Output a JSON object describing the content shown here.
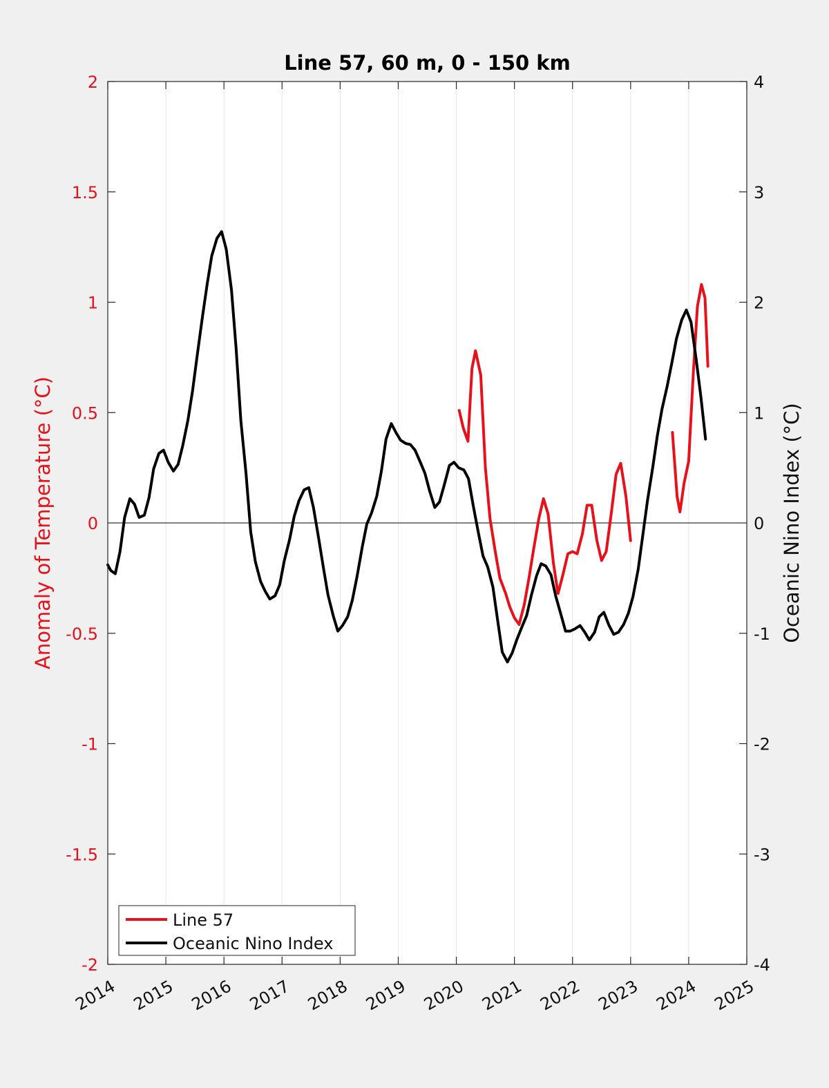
{
  "chart_data": {
    "type": "line",
    "title": "Line 57, 60 m, 0 - 150 km",
    "ylabel_left": "Anomaly of Temperature (°C)",
    "ylabel_right": "Oceanic Nino Index (°C)",
    "xlim": [
      2014,
      2025
    ],
    "ylim_left": [
      -2,
      2
    ],
    "ylim_right": [
      -4,
      4
    ],
    "x_ticks": [
      "2014",
      "2015",
      "2016",
      "2017",
      "2018",
      "2019",
      "2020",
      "2021",
      "2022",
      "2023",
      "2024",
      "2025"
    ],
    "x_tick_values": [
      2014,
      2015,
      2016,
      2017,
      2018,
      2019,
      2020,
      2021,
      2022,
      2023,
      2024,
      2025
    ],
    "y_ticks_left": [
      "-2",
      "-1.5",
      "-1",
      "-0.5",
      "0",
      "0.5",
      "1",
      "1.5",
      "2"
    ],
    "y_tick_values_left": [
      -2,
      -1.5,
      -1,
      -0.5,
      0,
      0.5,
      1,
      1.5,
      2
    ],
    "y_ticks_right": [
      "-4",
      "-3",
      "-2",
      "-1",
      "0",
      "1",
      "2",
      "3",
      "4"
    ],
    "y_tick_values_right": [
      -4,
      -3,
      -2,
      -1,
      0,
      1,
      2,
      3,
      4
    ],
    "grid": "vertical",
    "zero_line": true,
    "legend": {
      "position": "bottom-left",
      "entries": [
        "Line 57",
        "Oceanic Nino Index"
      ]
    },
    "series": [
      {
        "name": "Line 57",
        "axis": "left",
        "color": "#e8101a",
        "segments": [
          [
            [
              2020.05,
              0.51
            ],
            [
              2020.12,
              0.43
            ],
            [
              2020.2,
              0.37
            ],
            [
              2020.27,
              0.7
            ],
            [
              2020.33,
              0.78
            ],
            [
              2020.42,
              0.67
            ],
            [
              2020.5,
              0.25
            ],
            [
              2020.58,
              0.02
            ],
            [
              2020.67,
              -0.13
            ],
            [
              2020.75,
              -0.25
            ],
            [
              2020.85,
              -0.32
            ],
            [
              2020.92,
              -0.38
            ],
            [
              2021.0,
              -0.43
            ],
            [
              2021.08,
              -0.46
            ],
            [
              2021.17,
              -0.37
            ],
            [
              2021.25,
              -0.25
            ],
            [
              2021.33,
              -0.12
            ],
            [
              2021.42,
              0.02
            ],
            [
              2021.5,
              0.11
            ],
            [
              2021.58,
              0.04
            ],
            [
              2021.67,
              -0.18
            ],
            [
              2021.75,
              -0.32
            ],
            [
              2021.83,
              -0.24
            ],
            [
              2021.92,
              -0.14
            ],
            [
              2022.0,
              -0.13
            ],
            [
              2022.08,
              -0.14
            ],
            [
              2022.17,
              -0.05
            ],
            [
              2022.25,
              0.08
            ],
            [
              2022.33,
              0.08
            ],
            [
              2022.42,
              -0.08
            ],
            [
              2022.5,
              -0.17
            ],
            [
              2022.58,
              -0.13
            ],
            [
              2022.67,
              0.05
            ],
            [
              2022.75,
              0.22
            ],
            [
              2022.83,
              0.27
            ],
            [
              2022.92,
              0.12
            ],
            [
              2023.0,
              -0.08
            ]
          ],
          [
            [
              2023.72,
              0.41
            ],
            [
              2023.8,
              0.12
            ],
            [
              2023.85,
              0.05
            ],
            [
              2023.92,
              0.18
            ],
            [
              2024.0,
              0.28
            ],
            [
              2024.08,
              0.68
            ],
            [
              2024.15,
              0.98
            ],
            [
              2024.22,
              1.08
            ],
            [
              2024.28,
              1.02
            ],
            [
              2024.33,
              0.71
            ]
          ]
        ]
      },
      {
        "name": "Oceanic Nino Index",
        "axis": "right",
        "color": "#000000",
        "segments": [
          [
            [
              2014.0,
              -0.38
            ],
            [
              2014.05,
              -0.43
            ],
            [
              2014.13,
              -0.46
            ],
            [
              2014.21,
              -0.26
            ],
            [
              2014.29,
              0.05
            ],
            [
              2014.38,
              0.22
            ],
            [
              2014.46,
              0.17
            ],
            [
              2014.54,
              0.05
            ],
            [
              2014.63,
              0.07
            ],
            [
              2014.71,
              0.23
            ],
            [
              2014.79,
              0.49
            ],
            [
              2014.88,
              0.63
            ],
            [
              2014.96,
              0.66
            ],
            [
              2015.04,
              0.55
            ],
            [
              2015.13,
              0.47
            ],
            [
              2015.21,
              0.53
            ],
            [
              2015.29,
              0.7
            ],
            [
              2015.38,
              0.93
            ],
            [
              2015.46,
              1.2
            ],
            [
              2015.54,
              1.52
            ],
            [
              2015.63,
              1.87
            ],
            [
              2015.71,
              2.16
            ],
            [
              2015.79,
              2.42
            ],
            [
              2015.88,
              2.58
            ],
            [
              2015.96,
              2.64
            ],
            [
              2016.04,
              2.48
            ],
            [
              2016.13,
              2.11
            ],
            [
              2016.21,
              1.58
            ],
            [
              2016.29,
              0.93
            ],
            [
              2016.38,
              0.45
            ],
            [
              2016.46,
              -0.08
            ],
            [
              2016.54,
              -0.35
            ],
            [
              2016.63,
              -0.53
            ],
            [
              2016.71,
              -0.62
            ],
            [
              2016.79,
              -0.69
            ],
            [
              2016.88,
              -0.66
            ],
            [
              2016.96,
              -0.56
            ],
            [
              2017.04,
              -0.34
            ],
            [
              2017.13,
              -0.15
            ],
            [
              2017.21,
              0.06
            ],
            [
              2017.29,
              0.2
            ],
            [
              2017.38,
              0.3
            ],
            [
              2017.46,
              0.32
            ],
            [
              2017.54,
              0.14
            ],
            [
              2017.63,
              -0.14
            ],
            [
              2017.71,
              -0.4
            ],
            [
              2017.79,
              -0.65
            ],
            [
              2017.88,
              -0.84
            ],
            [
              2017.96,
              -0.98
            ],
            [
              2018.04,
              -0.93
            ],
            [
              2018.13,
              -0.85
            ],
            [
              2018.21,
              -0.7
            ],
            [
              2018.29,
              -0.49
            ],
            [
              2018.38,
              -0.22
            ],
            [
              2018.46,
              -0.01
            ],
            [
              2018.54,
              0.09
            ],
            [
              2018.63,
              0.24
            ],
            [
              2018.71,
              0.47
            ],
            [
              2018.79,
              0.76
            ],
            [
              2018.88,
              0.9
            ],
            [
              2018.96,
              0.82
            ],
            [
              2019.04,
              0.75
            ],
            [
              2019.13,
              0.72
            ],
            [
              2019.21,
              0.71
            ],
            [
              2019.29,
              0.66
            ],
            [
              2019.38,
              0.55
            ],
            [
              2019.46,
              0.45
            ],
            [
              2019.54,
              0.29
            ],
            [
              2019.63,
              0.14
            ],
            [
              2019.71,
              0.19
            ],
            [
              2019.79,
              0.34
            ],
            [
              2019.88,
              0.52
            ],
            [
              2019.96,
              0.55
            ],
            [
              2020.04,
              0.5
            ],
            [
              2020.13,
              0.48
            ],
            [
              2020.21,
              0.4
            ],
            [
              2020.29,
              0.16
            ],
            [
              2020.38,
              -0.09
            ],
            [
              2020.46,
              -0.3
            ],
            [
              2020.54,
              -0.4
            ],
            [
              2020.63,
              -0.58
            ],
            [
              2020.71,
              -0.88
            ],
            [
              2020.79,
              -1.17
            ],
            [
              2020.88,
              -1.26
            ],
            [
              2020.96,
              -1.18
            ],
            [
              2021.04,
              -1.06
            ],
            [
              2021.13,
              -0.94
            ],
            [
              2021.21,
              -0.84
            ],
            [
              2021.29,
              -0.66
            ],
            [
              2021.38,
              -0.48
            ],
            [
              2021.46,
              -0.37
            ],
            [
              2021.54,
              -0.39
            ],
            [
              2021.63,
              -0.47
            ],
            [
              2021.71,
              -0.66
            ],
            [
              2021.79,
              -0.81
            ],
            [
              2021.88,
              -0.98
            ],
            [
              2021.96,
              -0.98
            ],
            [
              2022.04,
              -0.96
            ],
            [
              2022.13,
              -0.93
            ],
            [
              2022.21,
              -0.99
            ],
            [
              2022.29,
              -1.06
            ],
            [
              2022.38,
              -0.99
            ],
            [
              2022.46,
              -0.85
            ],
            [
              2022.54,
              -0.81
            ],
            [
              2022.63,
              -0.93
            ],
            [
              2022.71,
              -1.01
            ],
            [
              2022.79,
              -0.99
            ],
            [
              2022.88,
              -0.92
            ],
            [
              2022.96,
              -0.82
            ],
            [
              2023.04,
              -0.67
            ],
            [
              2023.13,
              -0.42
            ],
            [
              2023.21,
              -0.11
            ],
            [
              2023.29,
              0.2
            ],
            [
              2023.38,
              0.5
            ],
            [
              2023.46,
              0.79
            ],
            [
              2023.54,
              1.03
            ],
            [
              2023.63,
              1.24
            ],
            [
              2023.71,
              1.45
            ],
            [
              2023.79,
              1.67
            ],
            [
              2023.88,
              1.84
            ],
            [
              2023.96,
              1.93
            ],
            [
              2024.04,
              1.82
            ],
            [
              2024.13,
              1.48
            ],
            [
              2024.21,
              1.14
            ],
            [
              2024.29,
              0.76
            ]
          ]
        ]
      }
    ]
  }
}
